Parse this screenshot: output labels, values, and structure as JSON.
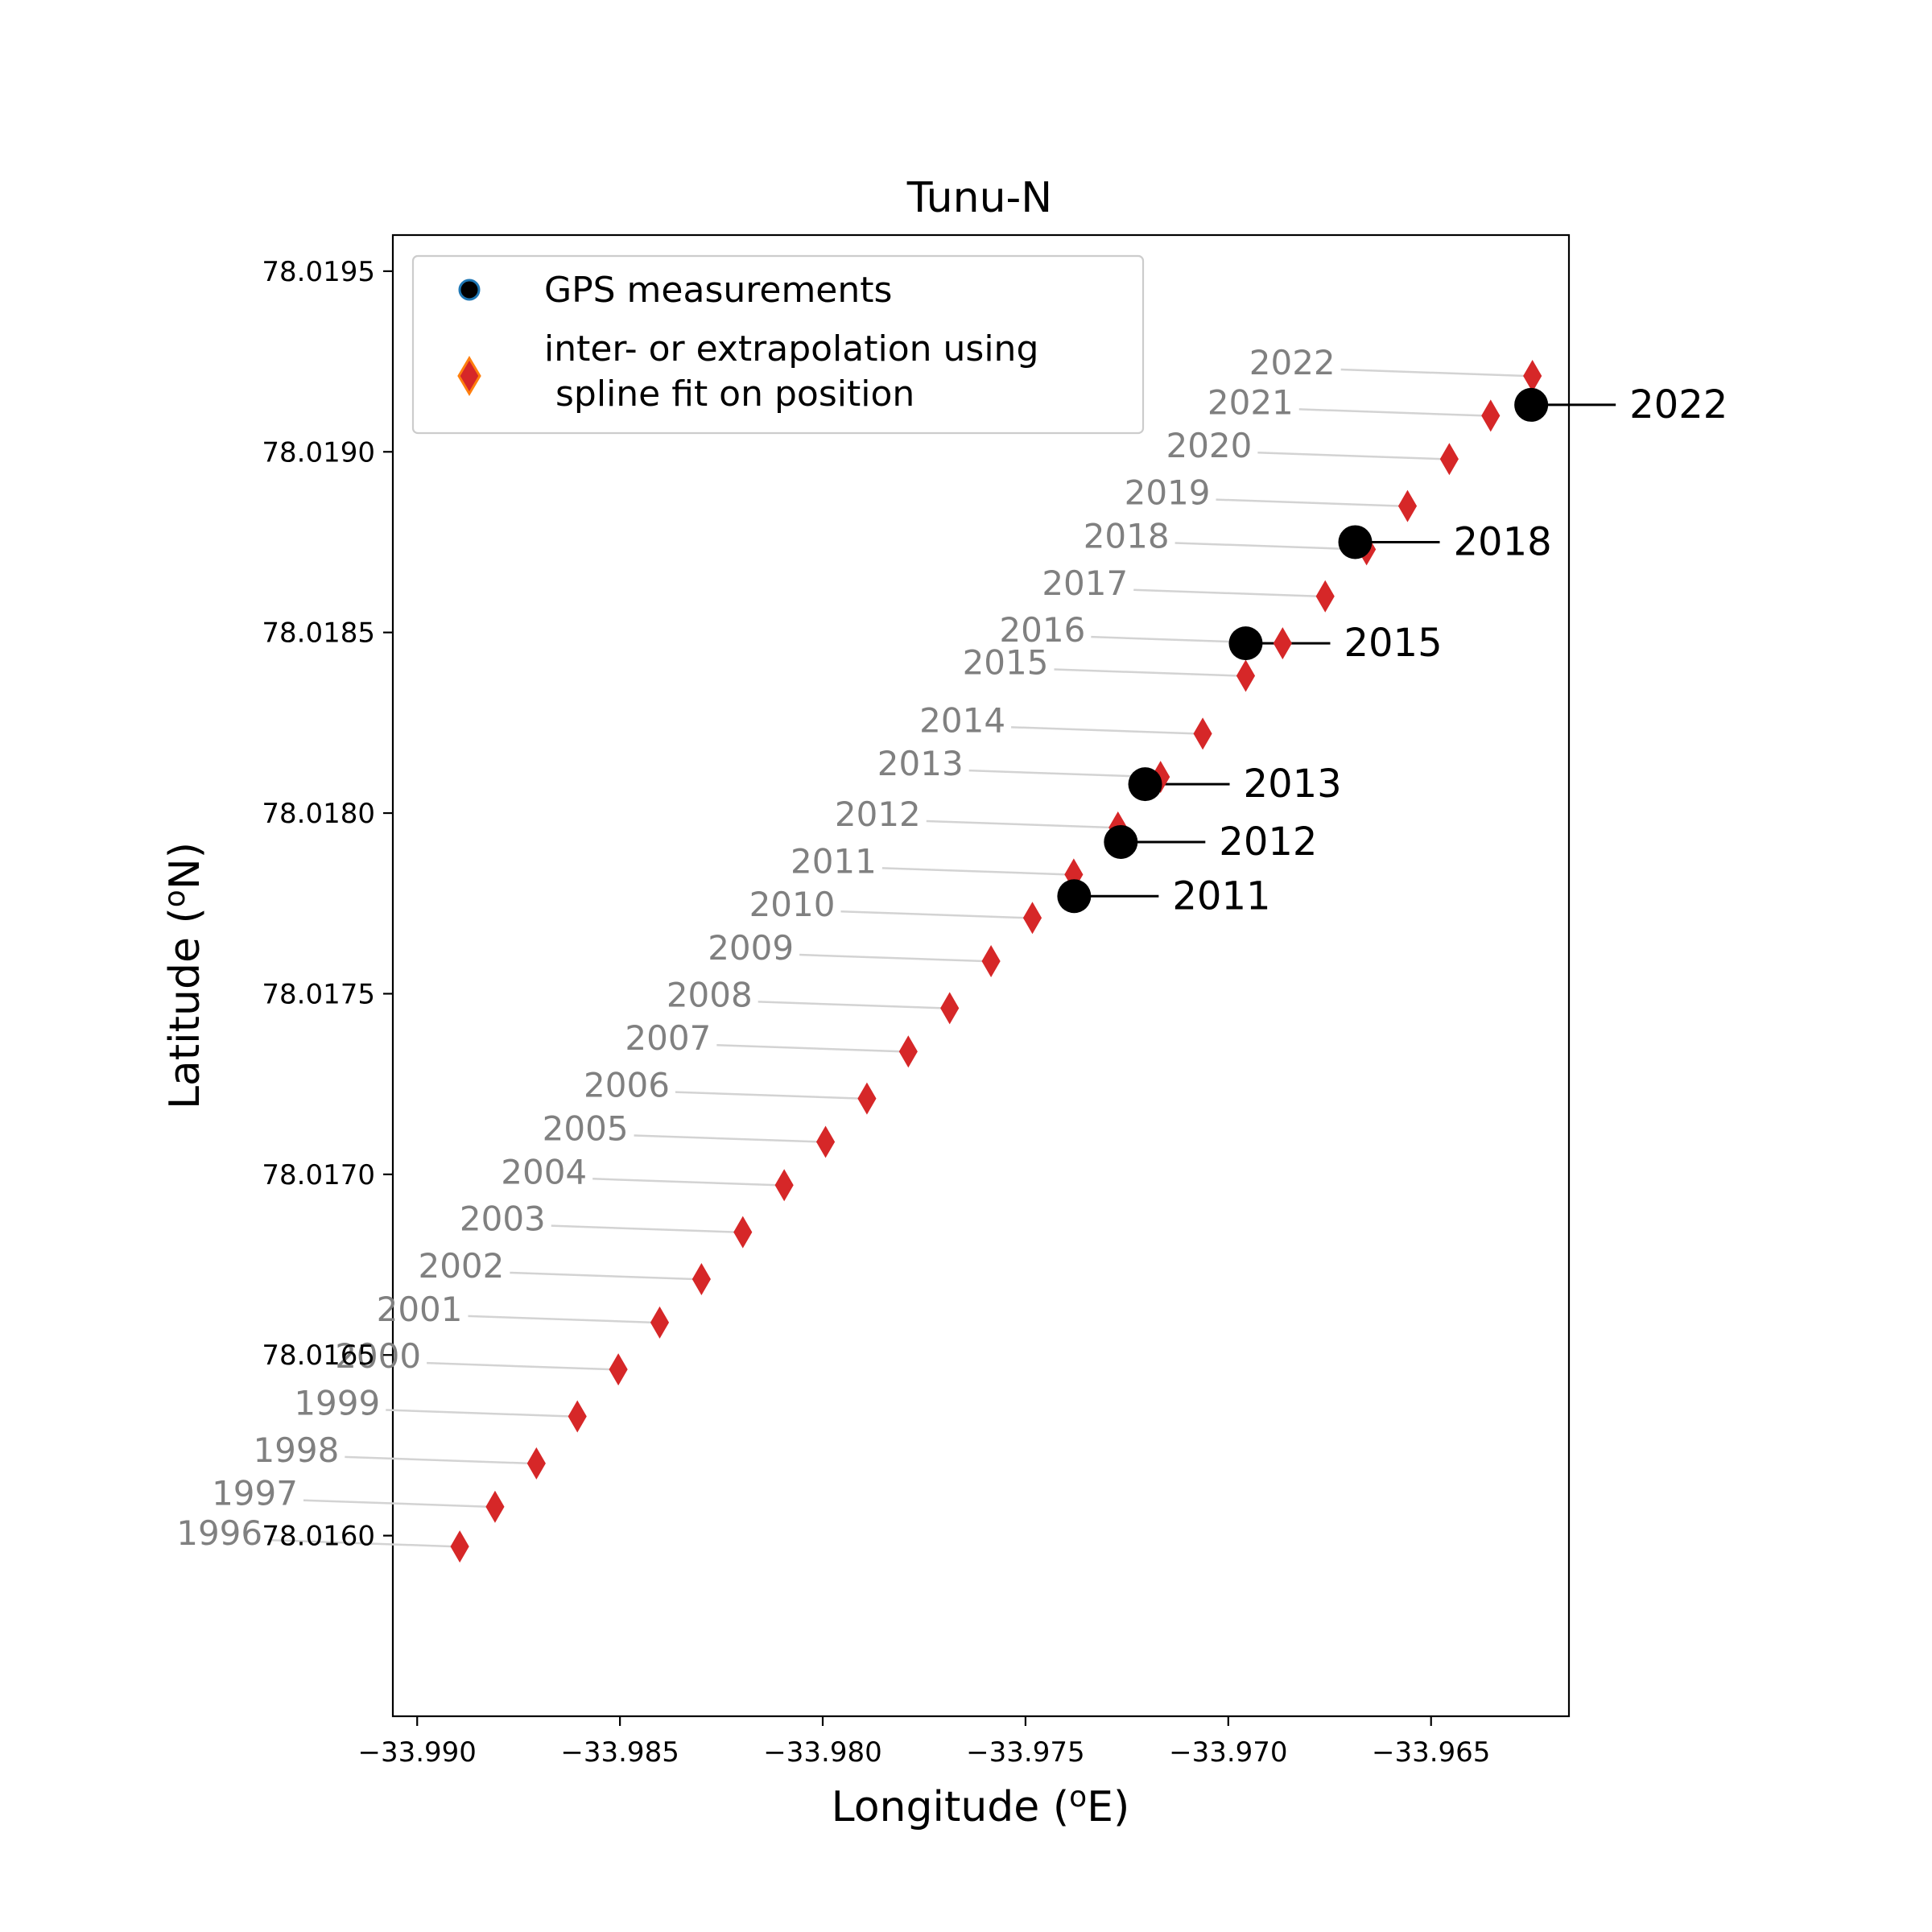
{
  "chart_data": {
    "type": "scatter",
    "title": "Tunu-N",
    "xlabel": "Longitude",
    "xlabel_sup": "o",
    "xlabel_unit": "E",
    "ylabel": "Latitude",
    "ylabel_sup": "o",
    "ylabel_unit": "N",
    "xlim": [
      -33.9906,
      -33.9616
    ],
    "ylim": [
      78.0155,
      78.0196
    ],
    "xticks": [
      -33.99,
      -33.985,
      -33.98,
      -33.975,
      -33.97,
      -33.965
    ],
    "xtick_labels": [
      "−33.990",
      "−33.985",
      "−33.980",
      "−33.975",
      "−33.970",
      "−33.965"
    ],
    "yticks": [
      78.016,
      78.0165,
      78.017,
      78.0175,
      78.018,
      78.0185,
      78.019,
      78.0195
    ],
    "ytick_labels": [
      "78.0160",
      "78.0165",
      "78.0170",
      "78.0175",
      "78.0180",
      "78.0185",
      "78.0190",
      "78.0195"
    ],
    "legend_position": "top-left",
    "grid": false,
    "colors": {
      "gps": "#000000",
      "gps_edge": "#1f77b4",
      "spline": "#d62728",
      "spline_edge": "#ff7f0e",
      "spline_label": "#808080",
      "leader_line": "#d3d3d3",
      "gps_leader": "#000000"
    },
    "series": [
      {
        "name": "GPS measurements",
        "marker": "circle",
        "points": [
          {
            "label": "2011",
            "x": -33.9738,
            "y": 78.01777
          },
          {
            "label": "2012",
            "x": -33.97265,
            "y": 78.01792
          },
          {
            "label": "2013",
            "x": -33.97205,
            "y": 78.01808
          },
          {
            "label": "2015",
            "x": -33.96957,
            "y": 78.01847
          },
          {
            "label": "2018",
            "x": -33.96687,
            "y": 78.01875
          },
          {
            "label": "2022",
            "x": -33.96253,
            "y": 78.01913
          }
        ]
      },
      {
        "name": "inter- or extrapolation using\n spline fit on position",
        "marker": "thin_diamond",
        "points": [
          {
            "label": "1996",
            "x": -33.98895,
            "y": 78.01597
          },
          {
            "label": "1997",
            "x": -33.98808,
            "y": 78.01608
          },
          {
            "label": "1998",
            "x": -33.98706,
            "y": 78.0162
          },
          {
            "label": "1999",
            "x": -33.98605,
            "y": 78.01633
          },
          {
            "label": "2000",
            "x": -33.98504,
            "y": 78.01646
          },
          {
            "label": "2001",
            "x": -33.98402,
            "y": 78.01659
          },
          {
            "label": "2002",
            "x": -33.98299,
            "y": 78.01671
          },
          {
            "label": "2003",
            "x": -33.98197,
            "y": 78.01684
          },
          {
            "label": "2004",
            "x": -33.98095,
            "y": 78.01697
          },
          {
            "label": "2005",
            "x": -33.97993,
            "y": 78.01709
          },
          {
            "label": "2006",
            "x": -33.97891,
            "y": 78.01721
          },
          {
            "label": "2007",
            "x": -33.97789,
            "y": 78.01734
          },
          {
            "label": "2008",
            "x": -33.97687,
            "y": 78.01746
          },
          {
            "label": "2009",
            "x": -33.97585,
            "y": 78.01759
          },
          {
            "label": "2010",
            "x": -33.97483,
            "y": 78.01771
          },
          {
            "label": "2011",
            "x": -33.97381,
            "y": 78.01783
          },
          {
            "label": "2012",
            "x": -33.97272,
            "y": 78.01796
          },
          {
            "label": "2013",
            "x": -33.97167,
            "y": 78.0181
          },
          {
            "label": "2014",
            "x": -33.97063,
            "y": 78.01822
          },
          {
            "label": "2015",
            "x": -33.96957,
            "y": 78.01838
          },
          {
            "label": "2016",
            "x": -33.96866,
            "y": 78.01847
          },
          {
            "label": "2017",
            "x": -33.96761,
            "y": 78.0186
          },
          {
            "label": "2018",
            "x": -33.96659,
            "y": 78.01873
          },
          {
            "label": "2019",
            "x": -33.96558,
            "y": 78.01885
          },
          {
            "label": "2020",
            "x": -33.96455,
            "y": 78.01898
          },
          {
            "label": "2021",
            "x": -33.96353,
            "y": 78.0191
          },
          {
            "label": "2022",
            "x": -33.9625,
            "y": 78.01921
          }
        ]
      }
    ]
  }
}
